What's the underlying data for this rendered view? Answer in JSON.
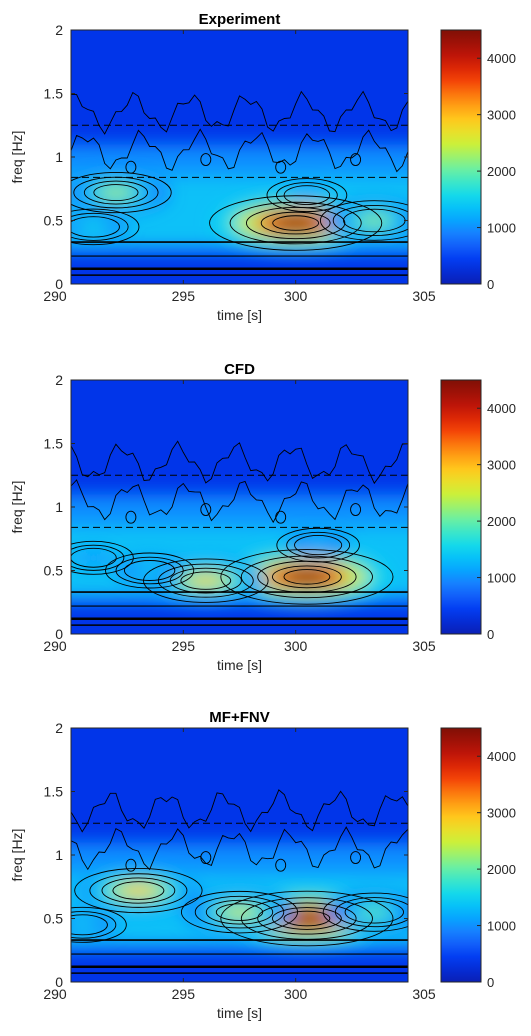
{
  "colors": {
    "colormap": [
      "#0a1fb5",
      "#0038f0",
      "#1b74ff",
      "#00b4ff",
      "#19e0e6",
      "#6df0a0",
      "#c8f23c",
      "#ffd21e",
      "#ff8a0f",
      "#f03205",
      "#b81208",
      "#801006"
    ],
    "contour": "#000000",
    "axis": "#262626"
  },
  "chart_data": [
    {
      "type": "heatmap",
      "title": "Experiment",
      "xlabel": "time [s]",
      "ylabel": "freq [Hz]",
      "xlim": [
        290,
        305
      ],
      "ylim": [
        0,
        2
      ],
      "xticks": [
        "290",
        "295",
        "300",
        "305"
      ],
      "yticks": [
        "0",
        "0.5",
        "1",
        "1.5",
        "2"
      ],
      "colorbar": {
        "range": [
          0,
          4500
        ],
        "ticks": [
          "0",
          "1000",
          "2000",
          "3000",
          "4000"
        ]
      },
      "dashed_lines": [
        1.25,
        0.84
      ],
      "hotspots": [
        {
          "t": 300,
          "f": 0.48,
          "value": 4500
        },
        {
          "t": 292,
          "f": 0.72,
          "value": 2300
        },
        {
          "t": 291,
          "f": 0.45,
          "value": 1600
        },
        {
          "t": 303.5,
          "f": 0.5,
          "value": 2200
        },
        {
          "t": 300.5,
          "f": 0.7,
          "value": 1200
        }
      ]
    },
    {
      "type": "heatmap",
      "title": "CFD",
      "xlabel": "time [s]",
      "ylabel": "freq [Hz]",
      "xlim": [
        290,
        305
      ],
      "ylim": [
        0,
        2
      ],
      "xticks": [
        "290",
        "295",
        "300",
        "305"
      ],
      "yticks": [
        "0",
        "0.5",
        "1",
        "1.5",
        "2"
      ],
      "colorbar": {
        "range": [
          0,
          4500
        ],
        "ticks": [
          "0",
          "1000",
          "2000",
          "3000",
          "4000"
        ]
      },
      "dashed_lines": [
        1.25,
        0.84
      ],
      "hotspots": [
        {
          "t": 300.5,
          "f": 0.45,
          "value": 4500
        },
        {
          "t": 296,
          "f": 0.42,
          "value": 2800
        },
        {
          "t": 293.5,
          "f": 0.5,
          "value": 1500
        },
        {
          "t": 301,
          "f": 0.7,
          "value": 1300
        },
        {
          "t": 291,
          "f": 0.6,
          "value": 1200
        }
      ]
    },
    {
      "type": "heatmap",
      "title": "MF+FNV",
      "xlabel": "time [s]",
      "ylabel": "freq [Hz]",
      "xlim": [
        290,
        305
      ],
      "ylim": [
        0,
        2
      ],
      "xticks": [
        "290",
        "295",
        "300",
        "305"
      ],
      "yticks": [
        "0",
        "0.5",
        "1",
        "1.5",
        "2"
      ],
      "colorbar": {
        "range": [
          0,
          4500
        ],
        "ticks": [
          "0",
          "1000",
          "2000",
          "3000",
          "4000"
        ]
      },
      "dashed_lines": [
        1.25
      ],
      "hotspots": [
        {
          "t": 300.5,
          "f": 0.5,
          "value": 4500
        },
        {
          "t": 293,
          "f": 0.72,
          "value": 2900
        },
        {
          "t": 297.5,
          "f": 0.55,
          "value": 2500
        },
        {
          "t": 290.5,
          "f": 0.45,
          "value": 1500
        },
        {
          "t": 303.5,
          "f": 0.55,
          "value": 2000
        }
      ]
    }
  ]
}
